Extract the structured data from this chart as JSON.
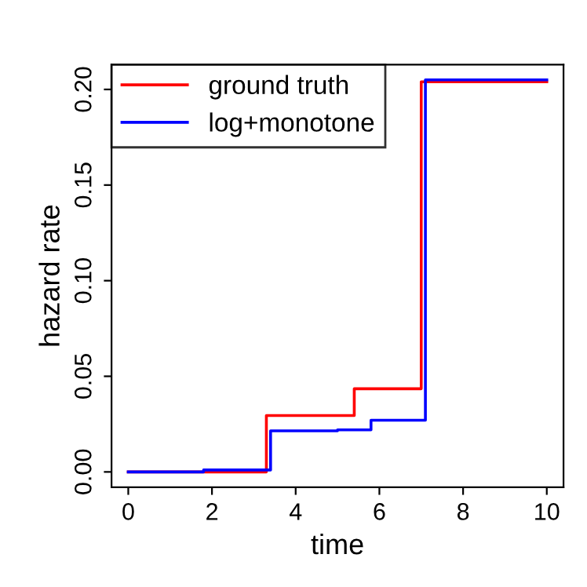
{
  "chart_data": {
    "type": "step",
    "xlabel": "time",
    "ylabel": "hazard rate",
    "series": [
      {
        "name": "ground truth",
        "color": "#ff0000",
        "x": [
          0,
          3.3,
          5.4,
          7.0,
          10
        ],
        "values": [
          0,
          0.0295,
          0.0435,
          0.204,
          0.204
        ]
      },
      {
        "name": "log+monotone",
        "color": "#0000ff",
        "x": [
          0,
          1.8,
          3.4,
          5.0,
          5.8,
          7.1,
          10
        ],
        "values": [
          0,
          0.001,
          0.0215,
          0.022,
          0.027,
          0.205,
          0.205
        ]
      }
    ],
    "xlim": [
      -0.4,
      10.4
    ],
    "ylim": [
      -0.008,
      0.213
    ],
    "xticks": [
      0,
      2,
      4,
      6,
      8,
      10
    ],
    "yticks": [
      {
        "value": 0,
        "label": "0.00"
      },
      {
        "value": 0.05,
        "label": "0.05"
      },
      {
        "value": 0.1,
        "label": "0.10"
      },
      {
        "value": 0.15,
        "label": "0.15"
      },
      {
        "value": 0.2,
        "label": "0.20"
      }
    ],
    "grid": false,
    "legend": "top left",
    "line_style": "solid"
  }
}
